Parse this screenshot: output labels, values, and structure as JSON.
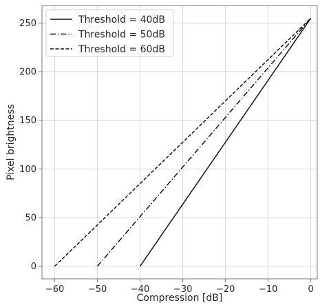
{
  "chart_data": {
    "type": "line",
    "xlabel": "Compression [dB]",
    "ylabel": "Pixel brightness",
    "xlim": [
      -63,
      1.5
    ],
    "ylim": [
      -13,
      268
    ],
    "xticks": [
      -60,
      -50,
      -40,
      -30,
      -20,
      -10,
      0
    ],
    "xtick_labels": [
      "−60",
      "−50",
      "−40",
      "−30",
      "−20",
      "−10",
      "0"
    ],
    "yticks": [
      0,
      50,
      100,
      150,
      200,
      250
    ],
    "ytick_labels": [
      "0",
      "50",
      "100",
      "150",
      "200",
      "250"
    ],
    "grid": true,
    "legend_position": "top-left",
    "series": [
      {
        "name": "Threshold = 40dB",
        "dash": "solid",
        "color": "#111111",
        "x": [
          -40,
          0
        ],
        "y": [
          0,
          255
        ]
      },
      {
        "name": "Threshold = 50dB",
        "dash": "dashdot",
        "color": "#111111",
        "x": [
          -50,
          0
        ],
        "y": [
          0,
          255
        ]
      },
      {
        "name": "Threshold = 60dB",
        "dash": "dashed",
        "color": "#111111",
        "x": [
          -60,
          0
        ],
        "y": [
          0,
          255
        ]
      }
    ]
  }
}
